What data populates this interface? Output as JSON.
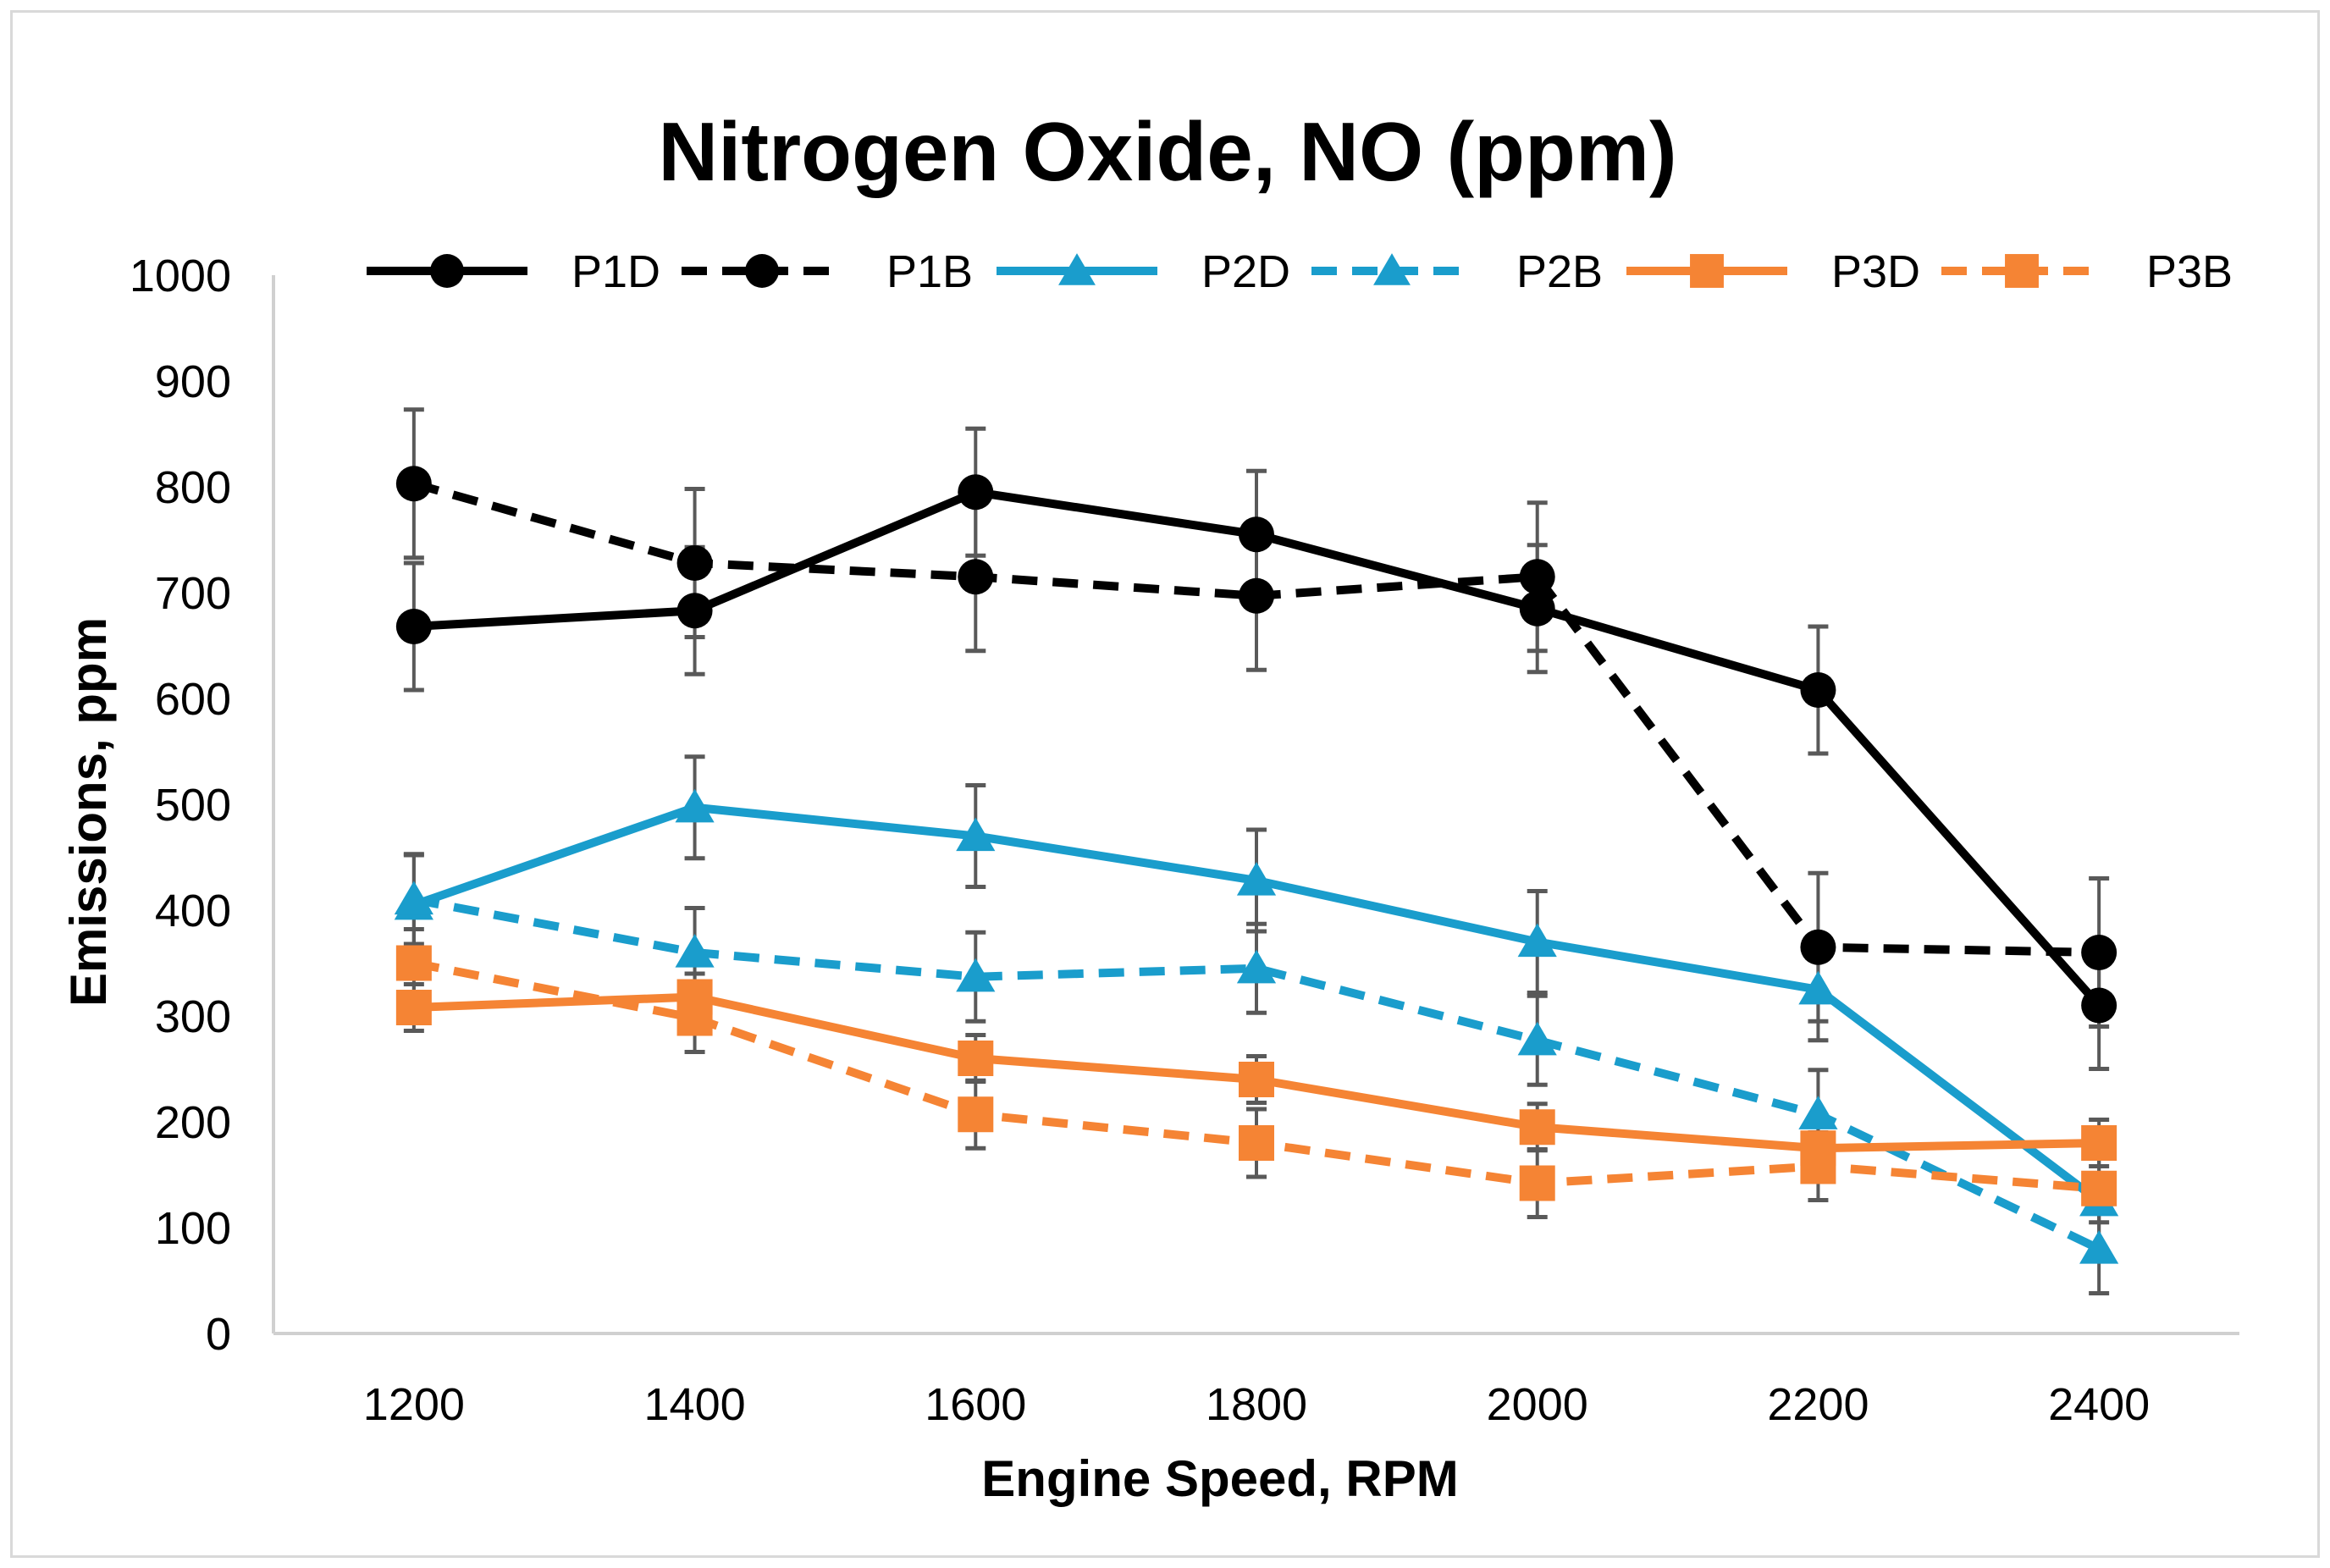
{
  "chart_data": {
    "type": "line",
    "title": "Nitrogen Oxide, NO (ppm)",
    "xlabel": "Engine Speed, RPM",
    "ylabel": "Emissions, ppm",
    "categories": [
      "1200",
      "1400",
      "1600",
      "1800",
      "2000",
      "2200",
      "2400"
    ],
    "y_ticks": [
      "0",
      "100",
      "200",
      "300",
      "400",
      "500",
      "600",
      "700",
      "800",
      "900",
      "1000"
    ],
    "ylim": [
      0,
      1000
    ],
    "grid": false,
    "legend_position": "top",
    "series": [
      {
        "name": "P1D",
        "color": "#000000",
        "dashed": false,
        "marker": "circle",
        "values": [
          668,
          683,
          795,
          755,
          685,
          608,
          310
        ],
        "error": [
          60,
          60,
          60,
          60,
          60,
          60,
          60
        ]
      },
      {
        "name": "P1B",
        "color": "#000000",
        "dashed": true,
        "marker": "circle",
        "values": [
          803,
          728,
          715,
          697,
          715,
          365,
          360
        ],
        "error": [
          70,
          70,
          70,
          70,
          70,
          70,
          70
        ]
      },
      {
        "name": "P2D",
        "color": "#1a9dcc",
        "dashed": false,
        "marker": "triangle",
        "values": [
          405,
          497,
          470,
          428,
          370,
          325,
          125
        ],
        "error": [
          48,
          48,
          48,
          48,
          48,
          48,
          48
        ]
      },
      {
        "name": "P2B",
        "color": "#1a9dcc",
        "dashed": true,
        "marker": "triangle",
        "values": [
          410,
          360,
          337,
          345,
          277,
          207,
          80
        ],
        "error": [
          42,
          42,
          42,
          42,
          42,
          42,
          42
        ]
      },
      {
        "name": "P3D",
        "color": "#f58434",
        "dashed": false,
        "marker": "square",
        "values": [
          308,
          318,
          260,
          240,
          195,
          175,
          180
        ],
        "error": [
          22,
          22,
          22,
          22,
          22,
          22,
          22
        ]
      },
      {
        "name": "P3B",
        "color": "#f58434",
        "dashed": true,
        "marker": "square",
        "values": [
          350,
          298,
          207,
          180,
          142,
          158,
          137
        ],
        "error": [
          32,
          32,
          32,
          32,
          32,
          32,
          32
        ]
      }
    ]
  }
}
